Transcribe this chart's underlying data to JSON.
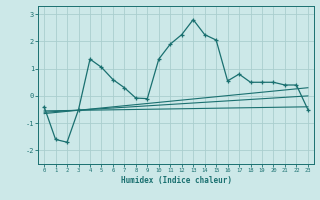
{
  "xlabel": "Humidex (Indice chaleur)",
  "xlim": [
    -0.5,
    23.5
  ],
  "ylim": [
    -2.5,
    3.3
  ],
  "background_color": "#cce8e8",
  "grid_color": "#aacece",
  "line_color": "#1a7070",
  "xticks": [
    0,
    1,
    2,
    3,
    4,
    5,
    6,
    7,
    8,
    9,
    10,
    11,
    12,
    13,
    14,
    15,
    16,
    17,
    18,
    19,
    20,
    21,
    22,
    23
  ],
  "yticks": [
    -2,
    -1,
    0,
    1,
    2,
    3
  ],
  "line1_x": [
    0,
    23
  ],
  "line1_y": [
    -0.55,
    -0.4
  ],
  "line2_x": [
    0,
    23
  ],
  "line2_y": [
    -0.6,
    0.0
  ],
  "line3_x": [
    0,
    23
  ],
  "line3_y": [
    -0.65,
    0.3
  ],
  "curve_x": [
    0,
    1,
    2,
    3,
    4,
    5,
    6,
    7,
    8,
    9,
    10,
    11,
    12,
    13,
    14,
    15,
    16,
    17,
    18,
    19,
    20,
    21,
    22,
    23
  ],
  "curve_y": [
    -0.4,
    -1.6,
    -1.7,
    -0.5,
    1.35,
    1.05,
    0.6,
    0.3,
    -0.08,
    -0.1,
    1.35,
    1.9,
    2.25,
    2.8,
    2.25,
    2.05,
    0.55,
    0.8,
    0.5,
    0.5,
    0.5,
    0.4,
    0.4,
    -0.5
  ]
}
